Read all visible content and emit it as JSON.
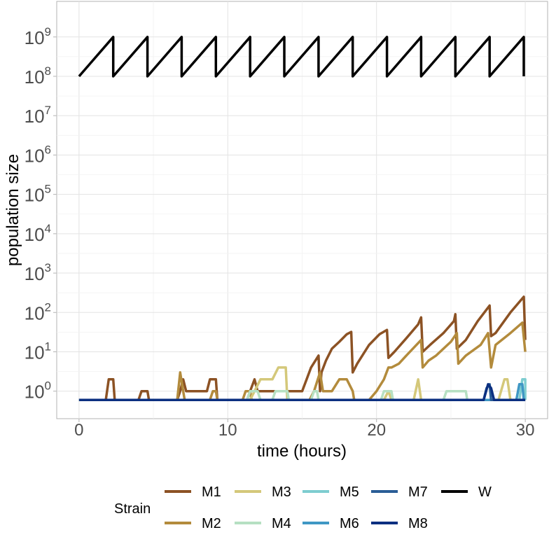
{
  "chart_data": {
    "type": "line",
    "xlabel": "time (hours)",
    "ylabel": "population size",
    "y_scale": "log10",
    "xlim": [
      -1.5,
      31.5
    ],
    "ylim": [
      0.2,
      8000000000
    ],
    "x_ticks": [
      0,
      10,
      20,
      30
    ],
    "x_tick_labels": [
      "0",
      "10",
      "20",
      "30"
    ],
    "y_ticks": [
      1,
      10,
      100,
      1000,
      10000,
      100000,
      1000000,
      10000000,
      100000000,
      1000000000
    ],
    "y_tick_bases": [
      "10",
      "10",
      "10",
      "10",
      "10",
      "10",
      "10",
      "10",
      "10",
      "10"
    ],
    "y_tick_exponents": [
      "0",
      "1",
      "2",
      "3",
      "4",
      "5",
      "6",
      "7",
      "8",
      "9"
    ],
    "grid": true,
    "legend_title": "Strain",
    "legend_position": "bottom",
    "series": [
      {
        "name": "W",
        "color": "#000000",
        "x": [
          0,
          2.3,
          2.3,
          4.6,
          4.6,
          6.9,
          6.9,
          9.2,
          9.2,
          11.5,
          11.5,
          13.8,
          13.8,
          16.1,
          16.1,
          18.4,
          18.4,
          20.7,
          20.7,
          23.0,
          23.0,
          25.3,
          25.3,
          27.6,
          27.6,
          29.9,
          29.9
        ],
        "y": [
          100000000,
          1000000000,
          100000000,
          1000000000,
          100000000,
          1000000000,
          100000000,
          1000000000,
          100000000,
          1000000000,
          100000000,
          1000000000,
          100000000,
          1000000000,
          100000000,
          1000000000,
          100000000,
          1000000000,
          100000000,
          1000000000,
          100000000,
          1000000000,
          100000000,
          1000000000,
          100000000,
          1000000000,
          100000000
        ]
      },
      {
        "name": "M1",
        "color": "#8c5224",
        "x": [
          0,
          1.8,
          2.0,
          2.3,
          2.4,
          4.0,
          4.2,
          4.6,
          4.7,
          6.6,
          6.8,
          7.0,
          7.2,
          8.6,
          8.8,
          9.2,
          9.3,
          11.3,
          11.5,
          11.8,
          12.0,
          15.0,
          15.3,
          15.6,
          16.1,
          16.2,
          16.3,
          16.6,
          17.0,
          17.5,
          18.0,
          18.3,
          18.4,
          18.7,
          19.5,
          20.2,
          20.7,
          20.8,
          21.2,
          22.0,
          22.8,
          23.0,
          23.1,
          23.6,
          24.5,
          25.2,
          25.3,
          25.4,
          26.0,
          26.8,
          27.6,
          27.7,
          28.0,
          29.0,
          29.9,
          30.0
        ],
        "y": [
          0.6,
          0.6,
          2,
          2,
          0.6,
          0.6,
          1,
          1,
          0.6,
          0.6,
          1,
          2,
          1,
          1,
          2,
          2,
          0.6,
          0.6,
          1,
          2,
          1,
          1,
          2,
          4,
          8,
          1,
          3,
          6,
          12,
          18,
          28,
          32,
          3,
          5,
          15,
          28,
          36,
          7,
          10,
          22,
          50,
          75,
          10,
          15,
          30,
          60,
          90,
          12,
          20,
          60,
          150,
          25,
          30,
          100,
          250,
          20
        ]
      },
      {
        "name": "M2",
        "color": "#b38b3c",
        "x": [
          0,
          6.6,
          6.8,
          7.0,
          7.1,
          8.8,
          9.0,
          9.2,
          9.3,
          11.0,
          11.2,
          11.5,
          11.6,
          15.5,
          15.8,
          16.2,
          16.4,
          17.0,
          17.5,
          18.0,
          18.4,
          18.5,
          19.5,
          20.0,
          20.5,
          20.8,
          21.0,
          21.5,
          22.0,
          23.0,
          23.1,
          23.5,
          24.0,
          25.0,
          25.4,
          25.5,
          26.0,
          27.0,
          27.5,
          27.7,
          28.0,
          29.0,
          29.8,
          30.0
        ],
        "y": [
          0.6,
          0.6,
          3,
          1,
          0.6,
          0.6,
          1,
          1,
          0.6,
          0.6,
          1,
          1,
          0.6,
          0.6,
          1,
          3,
          1,
          1,
          2,
          2,
          1,
          0.6,
          0.6,
          1,
          2,
          4,
          4,
          5,
          8,
          20,
          4,
          6,
          8,
          18,
          30,
          5,
          8,
          15,
          30,
          4,
          15,
          30,
          55,
          10
        ]
      },
      {
        "name": "M3",
        "color": "#d4c87a",
        "x": [
          0,
          11.5,
          11.8,
          12.2,
          13.0,
          13.4,
          13.9,
          14.0,
          20.5,
          20.8,
          21.0,
          22.5,
          22.8,
          23.0,
          28.2,
          28.6,
          28.8,
          29.0
        ],
        "y": [
          0.6,
          0.6,
          1,
          2,
          2,
          4,
          4,
          0.6,
          0.6,
          1,
          0.6,
          0.6,
          2,
          0.6,
          0.6,
          2,
          2,
          0.6
        ]
      },
      {
        "name": "M4",
        "color": "#b6e0c2",
        "x": [
          0,
          11.3,
          11.5,
          12.0,
          12.2,
          13.0,
          13.2,
          14.0,
          14.1,
          15.6,
          15.8,
          16.0,
          16.1,
          20.3,
          20.5,
          21.0,
          21.1,
          24.5,
          24.7,
          26.0,
          26.1
        ],
        "y": [
          0.6,
          0.6,
          1,
          1,
          0.6,
          0.6,
          1,
          1,
          0.6,
          0.6,
          1,
          1,
          0.6,
          0.6,
          1,
          1,
          0.6,
          0.6,
          1,
          1,
          0.6
        ]
      },
      {
        "name": "M5",
        "color": "#7ecdd0",
        "x": [
          0,
          29.6,
          29.8,
          30.0,
          30.0
        ],
        "y": [
          0.6,
          0.6,
          2,
          2,
          0.6
        ]
      },
      {
        "name": "M6",
        "color": "#3f97c4",
        "x": [
          0,
          29.4,
          29.6,
          29.8,
          29.9
        ],
        "y": [
          0.6,
          0.6,
          1.5,
          1.5,
          0.6
        ]
      },
      {
        "name": "M7",
        "color": "#2a5d96",
        "x": [
          0,
          27.2,
          27.4,
          27.6,
          27.7,
          30.0
        ],
        "y": [
          0.6,
          0.6,
          1.2,
          1.5,
          0.6,
          0.6
        ]
      },
      {
        "name": "M8",
        "color": "#0b2f80",
        "x": [
          0,
          27.2,
          27.5,
          27.7,
          27.9,
          30.0
        ],
        "y": [
          0.6,
          0.6,
          1.5,
          1.2,
          0.6,
          0.6
        ]
      }
    ],
    "legend_order": [
      "M1",
      "M3",
      "M5",
      "M7",
      "W",
      "M2",
      "M4",
      "M6",
      "M8"
    ]
  }
}
